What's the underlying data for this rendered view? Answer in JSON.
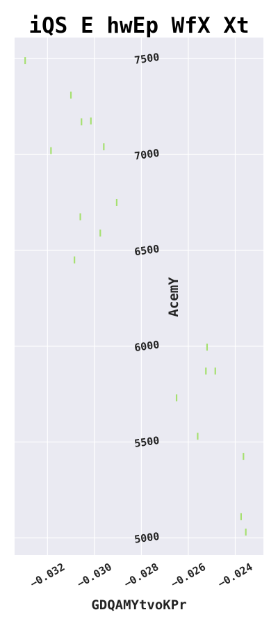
{
  "chart_data": {
    "type": "scatter",
    "title": "iQS E hwEp WfX Xt",
    "xlabel": "GDQAMYtvoKPr",
    "ylabel": "AcemY",
    "xlim": [
      -0.0334,
      -0.0228
    ],
    "ylim": [
      4910,
      7610
    ],
    "x_ticks": [
      -0.032,
      -0.03,
      -0.028,
      -0.026,
      -0.024
    ],
    "x_tick_labels": [
      "−0.032",
      "−0.030",
      "−0.028",
      "−0.026",
      "−0.024"
    ],
    "y_ticks": [
      5000,
      5500,
      6000,
      6500,
      7000,
      7500
    ],
    "y_tick_labels": [
      "5000",
      "5500",
      "6000",
      "6500",
      "7000",
      "7500"
    ],
    "grid": true,
    "marker_color": "#a6e070",
    "background_color": "#eaeaf2",
    "points": [
      {
        "x": -0.03295,
        "y": 7490
      },
      {
        "x": -0.031,
        "y": 7310
      },
      {
        "x": -0.03055,
        "y": 7170
      },
      {
        "x": -0.03015,
        "y": 7175
      },
      {
        "x": -0.0296,
        "y": 7040
      },
      {
        "x": -0.03185,
        "y": 7020
      },
      {
        "x": -0.02905,
        "y": 6750
      },
      {
        "x": -0.0306,
        "y": 6675
      },
      {
        "x": -0.02975,
        "y": 6590
      },
      {
        "x": -0.03085,
        "y": 6450
      },
      {
        "x": -0.0252,
        "y": 5995
      },
      {
        "x": -0.02525,
        "y": 5870
      },
      {
        "x": -0.02485,
        "y": 5870
      },
      {
        "x": -0.0265,
        "y": 5730
      },
      {
        "x": -0.0256,
        "y": 5530
      },
      {
        "x": -0.02365,
        "y": 5425
      },
      {
        "x": -0.02375,
        "y": 5110
      },
      {
        "x": -0.02355,
        "y": 5030
      }
    ]
  }
}
